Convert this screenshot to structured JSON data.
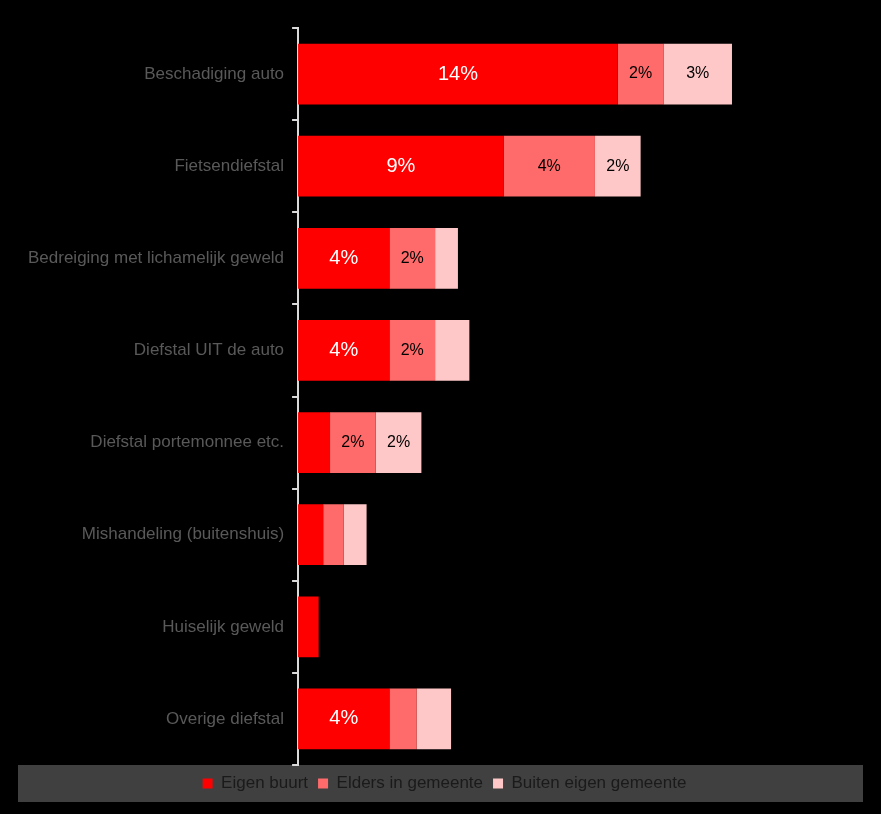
{
  "chart_data": {
    "type": "bar",
    "orientation": "horizontal",
    "stacked": true,
    "categories": [
      "Beschadiging auto",
      "Fietsendiefstal",
      "Bedreiging met lichamelijk geweld",
      "Diefstal UIT de auto",
      "Diefstal portemonnee etc.",
      "Mishandeling (buitenshuis)",
      "Huiselijk geweld",
      "Overige diefstal"
    ],
    "series": [
      {
        "name": "Eigen buurt",
        "color": "#ff0000",
        "values": [
          14,
          9,
          4,
          4,
          1.4,
          1.1,
          0.9,
          4
        ],
        "value_labels": [
          "14%",
          "9%",
          "4%",
          "4%",
          null,
          null,
          null,
          "4%"
        ]
      },
      {
        "name": "Elders in gemeente",
        "color": "#ff6b6b",
        "values": [
          2,
          4,
          2,
          2,
          2,
          0.9,
          0,
          1.2
        ],
        "value_labels": [
          "2%",
          "4%",
          "2%",
          "2%",
          "2%",
          null,
          null,
          null
        ]
      },
      {
        "name": "Buiten eigen gemeente",
        "color": "#ffc8c8",
        "values": [
          3,
          2,
          1,
          1.5,
          2,
          1,
          0,
          1.5
        ],
        "value_labels": [
          "3%",
          "2%",
          null,
          null,
          "2%",
          null,
          null,
          null
        ]
      }
    ],
    "xlim": [
      0,
      25
    ],
    "grid": false,
    "legend": "bottom",
    "data_labels": true,
    "tick_labels": "y"
  }
}
